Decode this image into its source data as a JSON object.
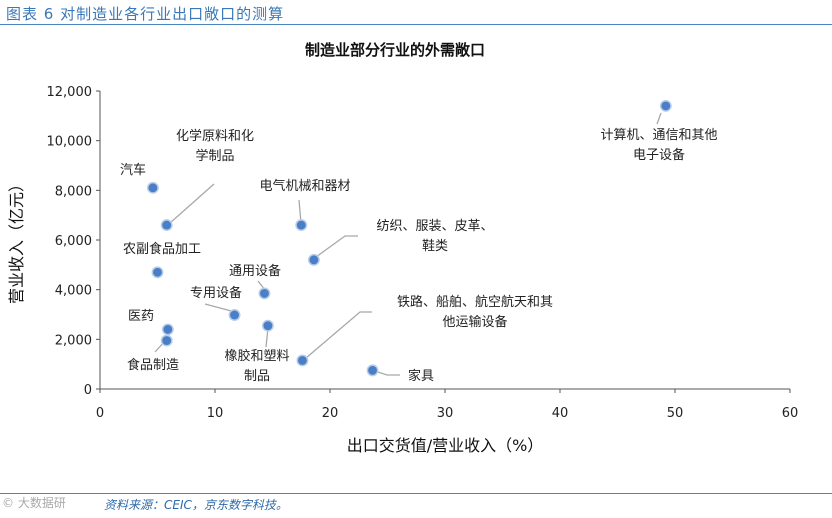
{
  "figure": {
    "title": "图表 6 对制造业各行业出口敞口的测算",
    "source": "资料来源：CEIC，京东数字科技。",
    "watermark": "© 大数据研"
  },
  "colors": {
    "accent": "#3a78b8",
    "marker": "#4a7fc8"
  },
  "chart_data": {
    "type": "scatter",
    "title": "制造业部分行业的外需敞口",
    "xlabel": "出口交货值/营业收入（%）",
    "ylabel": "营业收入（亿元）",
    "xlim": [
      0,
      60
    ],
    "ylim": [
      0,
      12000
    ],
    "x_ticks": [
      0,
      10,
      20,
      30,
      40,
      50,
      60
    ],
    "y_ticks": [
      0,
      2000,
      4000,
      6000,
      8000,
      10000,
      12000
    ],
    "x_tick_labels": [
      "0",
      "10",
      "20",
      "30",
      "40",
      "50",
      "60"
    ],
    "y_tick_labels": [
      "0",
      "2,000",
      "4,000",
      "6,000",
      "8,000",
      "10,000",
      "12,000"
    ],
    "grid": false,
    "points": [
      {
        "name": "计算机、通信和其他电子设备",
        "label_lines": [
          "计算机、通信和其他",
          "电子设备"
        ],
        "x": 49.2,
        "y": 11400
      },
      {
        "name": "汽车",
        "label_lines": [
          "汽车"
        ],
        "x": 4.6,
        "y": 8100
      },
      {
        "name": "化学原料和化学制品",
        "label_lines": [
          "化学原料和化",
          "学制品"
        ],
        "x": 5.8,
        "y": 6600
      },
      {
        "name": "电气机械和器材",
        "label_lines": [
          "电气机械和器材"
        ],
        "x": 17.5,
        "y": 6600
      },
      {
        "name": "纺织、服装、皮革、鞋类",
        "label_lines": [
          "纺织、服装、皮革、",
          "鞋类"
        ],
        "x": 18.6,
        "y": 5200
      },
      {
        "name": "农副食品加工",
        "label_lines": [
          "农副食品加工"
        ],
        "x": 5.0,
        "y": 4700
      },
      {
        "name": "通用设备",
        "label_lines": [
          "通用设备"
        ],
        "x": 14.3,
        "y": 3850
      },
      {
        "name": "专用设备",
        "label_lines": [
          "专用设备"
        ],
        "x": 11.7,
        "y": 2980
      },
      {
        "name": "医药",
        "label_lines": [
          "医药"
        ],
        "x": 5.9,
        "y": 2400
      },
      {
        "name": "橡胶和塑料制品",
        "label_lines": [
          "橡胶和塑料",
          "制品"
        ],
        "x": 14.6,
        "y": 2550
      },
      {
        "name": "食品制造",
        "label_lines": [
          "食品制造"
        ],
        "x": 5.8,
        "y": 1950
      },
      {
        "name": "铁路、船舶、航空航天和其他运输设备",
        "label_lines": [
          "铁路、船舶、航空航天和其",
          "他运输设备"
        ],
        "x": 17.6,
        "y": 1150
      },
      {
        "name": "家具",
        "label_lines": [
          "家具"
        ],
        "x": 23.7,
        "y": 750
      }
    ]
  }
}
